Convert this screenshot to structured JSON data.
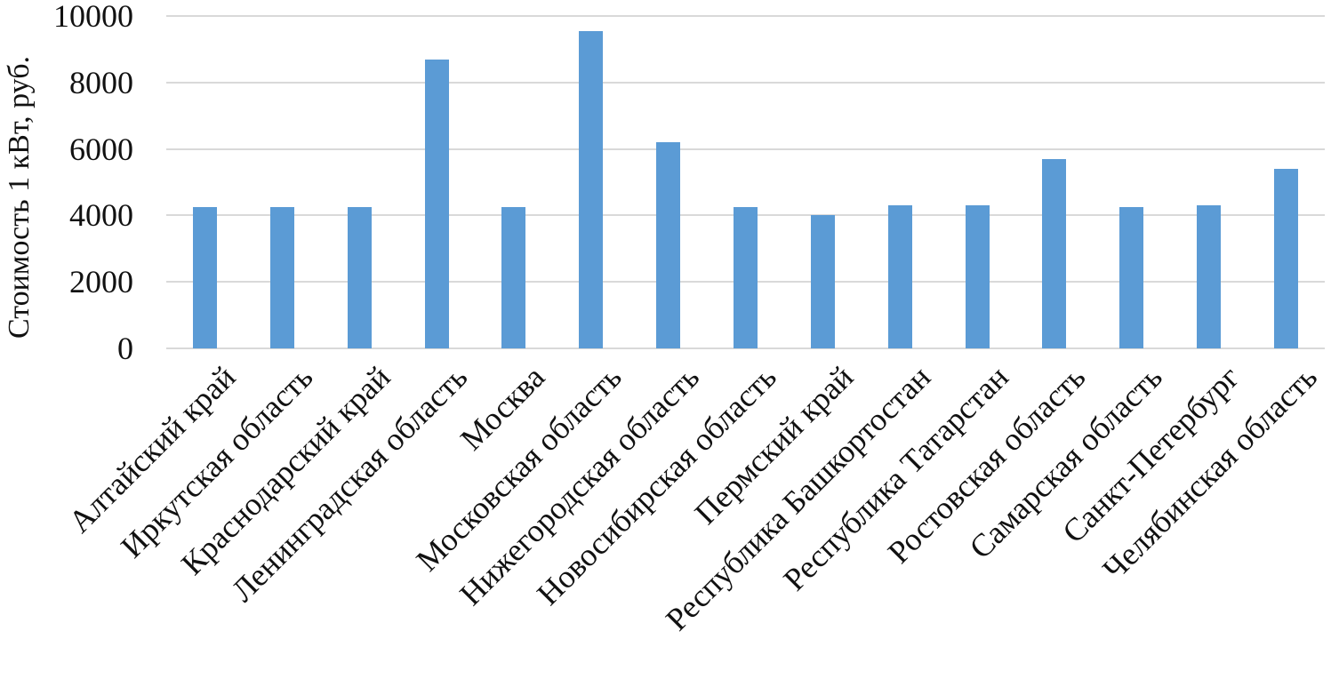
{
  "chart_data": {
    "type": "bar",
    "title": "",
    "xlabel": "",
    "ylabel": "Стоимость 1 кВт, руб.",
    "ylim": [
      0,
      10000
    ],
    "yticks": [
      0,
      2000,
      4000,
      6000,
      8000,
      10000
    ],
    "grid": true,
    "legend": "none",
    "bar_color": "#5b9bd5",
    "gridline_color": "#d9d9d9",
    "categories": [
      "Алтайский край",
      "Иркутская область",
      "Краснодарский край",
      "Ленинградская область",
      "Москва",
      "Московская область",
      "Нижегородская область",
      "Новосибирская область",
      "Пермский край",
      "Республика Башкортостан",
      "Республика Татарстан",
      "Ростовская область",
      "Самарская область",
      "Санкт-Петербург",
      "Челябинская область"
    ],
    "values": [
      4250,
      4250,
      4250,
      8700,
      4250,
      9550,
      6200,
      4250,
      4000,
      4300,
      4300,
      5700,
      4250,
      4300,
      5400
    ]
  }
}
